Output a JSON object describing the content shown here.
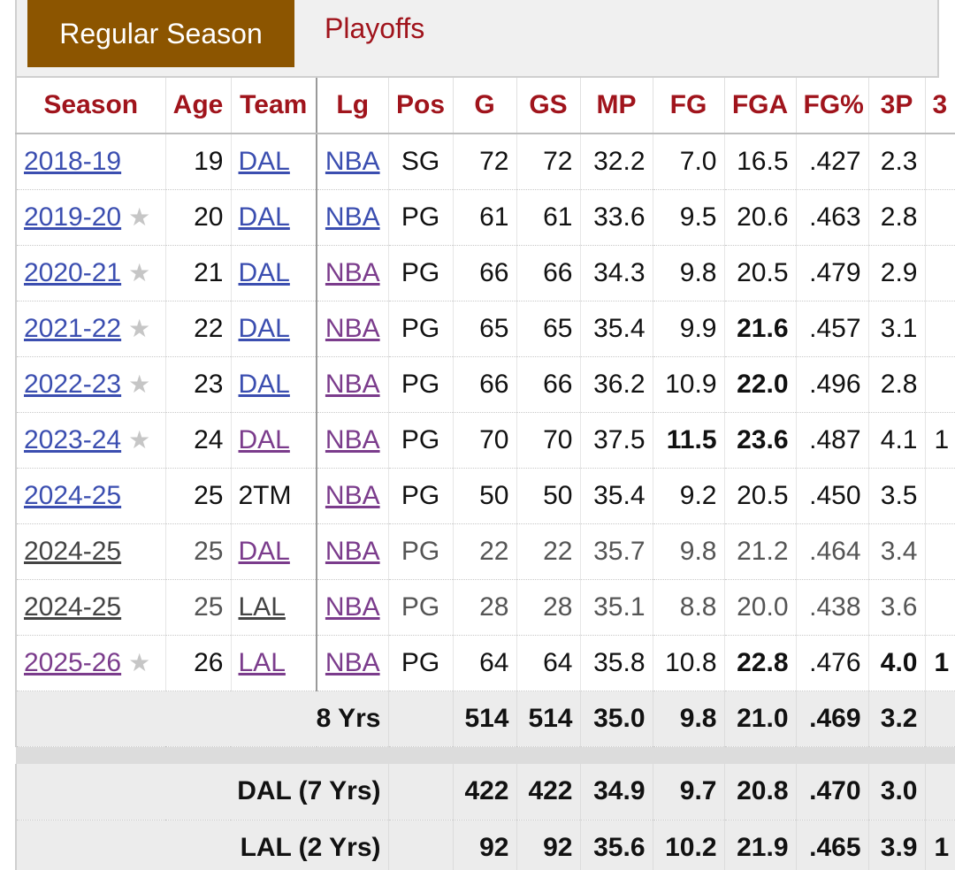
{
  "tabs": {
    "regular": "Regular Season",
    "playoffs": "Playoffs"
  },
  "headers": [
    "Season",
    "Age",
    "Team",
    "Lg",
    "Pos",
    "G",
    "GS",
    "MP",
    "FG",
    "FGA",
    "FG%",
    "3P",
    "3"
  ],
  "rows": [
    {
      "season": "2018-19",
      "star": false,
      "age": "19",
      "team": "DAL",
      "team_link": true,
      "lg": "NBA",
      "pos": "SG",
      "g": "72",
      "gs": "72",
      "mp": "32.2",
      "fg": "7.0",
      "fga": "16.5",
      "fgp": ".427",
      "tp": "2.3",
      "x": "",
      "bold": [],
      "season_color": "blue",
      "lg_color": "blue",
      "team_color": "blue",
      "faded": false
    },
    {
      "season": "2019-20",
      "star": true,
      "age": "20",
      "team": "DAL",
      "team_link": true,
      "lg": "NBA",
      "pos": "PG",
      "g": "61",
      "gs": "61",
      "mp": "33.6",
      "fg": "9.5",
      "fga": "20.6",
      "fgp": ".463",
      "tp": "2.8",
      "x": "",
      "bold": [],
      "season_color": "blue",
      "lg_color": "blue",
      "team_color": "blue",
      "faded": false
    },
    {
      "season": "2020-21",
      "star": true,
      "age": "21",
      "team": "DAL",
      "team_link": true,
      "lg": "NBA",
      "pos": "PG",
      "g": "66",
      "gs": "66",
      "mp": "34.3",
      "fg": "9.8",
      "fga": "20.5",
      "fgp": ".479",
      "tp": "2.9",
      "x": "",
      "bold": [],
      "season_color": "blue",
      "lg_color": "purple",
      "team_color": "blue",
      "faded": false
    },
    {
      "season": "2021-22",
      "star": true,
      "age": "22",
      "team": "DAL",
      "team_link": true,
      "lg": "NBA",
      "pos": "PG",
      "g": "65",
      "gs": "65",
      "mp": "35.4",
      "fg": "9.9",
      "fga": "21.6",
      "fgp": ".457",
      "tp": "3.1",
      "x": "",
      "bold": [
        "fga"
      ],
      "season_color": "blue",
      "lg_color": "purple",
      "team_color": "blue",
      "faded": false
    },
    {
      "season": "2022-23",
      "star": true,
      "age": "23",
      "team": "DAL",
      "team_link": true,
      "lg": "NBA",
      "pos": "PG",
      "g": "66",
      "gs": "66",
      "mp": "36.2",
      "fg": "10.9",
      "fga": "22.0",
      "fgp": ".496",
      "tp": "2.8",
      "x": "",
      "bold": [
        "fga"
      ],
      "season_color": "blue",
      "lg_color": "purple",
      "team_color": "blue",
      "faded": false
    },
    {
      "season": "2023-24",
      "star": true,
      "age": "24",
      "team": "DAL",
      "team_link": true,
      "lg": "NBA",
      "pos": "PG",
      "g": "70",
      "gs": "70",
      "mp": "37.5",
      "fg": "11.5",
      "fga": "23.6",
      "fgp": ".487",
      "tp": "4.1",
      "x": "1",
      "bold": [
        "fg",
        "fga"
      ],
      "season_color": "blue",
      "lg_color": "purple",
      "team_color": "purple",
      "faded": false
    },
    {
      "season": "2024-25",
      "star": false,
      "age": "25",
      "team": "2TM",
      "team_link": false,
      "lg": "NBA",
      "pos": "PG",
      "g": "50",
      "gs": "50",
      "mp": "35.4",
      "fg": "9.2",
      "fga": "20.5",
      "fgp": ".450",
      "tp": "3.5",
      "x": "",
      "bold": [],
      "season_color": "blue",
      "lg_color": "purple",
      "team_color": "blue",
      "faded": false
    },
    {
      "season": "2024-25",
      "star": false,
      "age": "25",
      "team": "DAL",
      "team_link": true,
      "lg": "NBA",
      "pos": "PG",
      "g": "22",
      "gs": "22",
      "mp": "35.7",
      "fg": "9.8",
      "fga": "21.2",
      "fgp": ".464",
      "tp": "3.4",
      "x": "",
      "bold": [],
      "season_color": "grey",
      "lg_color": "purple",
      "team_color": "purple",
      "faded": true
    },
    {
      "season": "2024-25",
      "star": false,
      "age": "25",
      "team": "LAL",
      "team_link": true,
      "lg": "NBA",
      "pos": "PG",
      "g": "28",
      "gs": "28",
      "mp": "35.1",
      "fg": "8.8",
      "fga": "20.0",
      "fgp": ".438",
      "tp": "3.6",
      "x": "",
      "bold": [],
      "season_color": "grey",
      "lg_color": "purple",
      "team_color": "grey",
      "faded": true
    },
    {
      "season": "2025-26",
      "star": true,
      "age": "26",
      "team": "LAL",
      "team_link": true,
      "lg": "NBA",
      "pos": "PG",
      "g": "64",
      "gs": "64",
      "mp": "35.8",
      "fg": "10.8",
      "fga": "22.8",
      "fgp": ".476",
      "tp": "4.0",
      "x": "1",
      "bold": [
        "fga",
        "tp"
      ],
      "season_color": "purple",
      "lg_color": "purple",
      "team_color": "purple",
      "faded": false
    }
  ],
  "totals": [
    {
      "label": "8 Yrs",
      "g": "514",
      "gs": "514",
      "mp": "35.0",
      "fg": "9.8",
      "fga": "21.0",
      "fgp": ".469",
      "tp": "3.2",
      "x": ""
    },
    {
      "label": "DAL (7 Yrs)",
      "g": "422",
      "gs": "422",
      "mp": "34.9",
      "fg": "9.7",
      "fga": "20.8",
      "fgp": ".470",
      "tp": "3.0",
      "x": ""
    },
    {
      "label": "LAL (2 Yrs)",
      "g": "92",
      "gs": "92",
      "mp": "35.6",
      "fg": "10.2",
      "fga": "21.9",
      "fgp": ".465",
      "tp": "3.9",
      "x": "1"
    }
  ],
  "icons": {
    "star": "all-star-star-icon"
  }
}
